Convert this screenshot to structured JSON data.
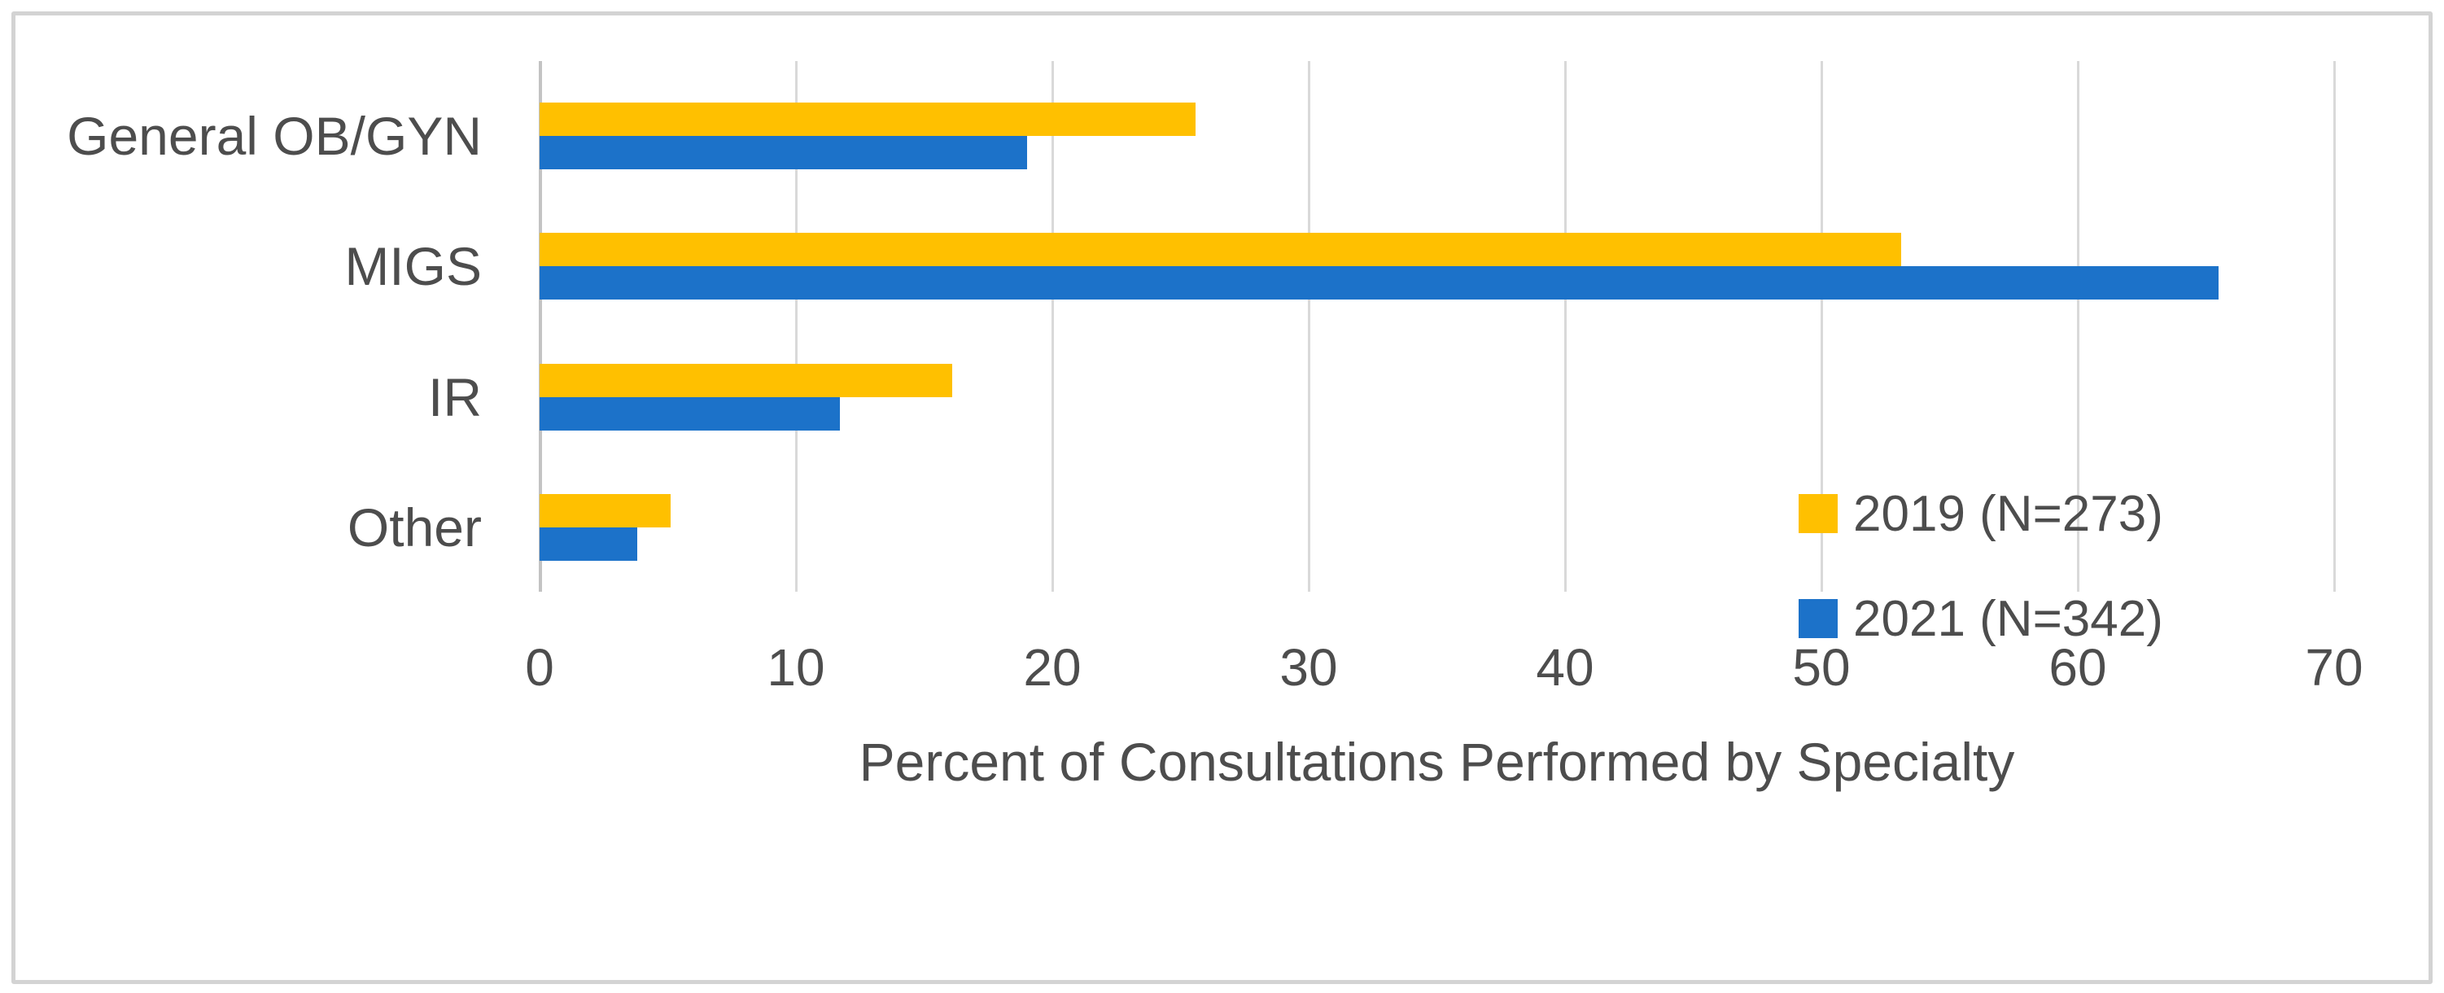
{
  "chart_data": {
    "type": "bar",
    "orientation": "horizontal",
    "title": "",
    "xlabel": "Percent of Consultations Performed by Specialty",
    "ylabel": "",
    "categories": [
      "General OB/GYN",
      "MIGS",
      "IR",
      "Other"
    ],
    "series": [
      {
        "name": "2019 (N=273)",
        "color": "#FFC000",
        "values": [
          25.6,
          53.1,
          16.1,
          5.1
        ]
      },
      {
        "name": "2021 (N=342)",
        "color": "#1C72C9",
        "values": [
          19.0,
          65.5,
          11.7,
          3.8
        ]
      }
    ],
    "xlim": [
      0,
      70
    ],
    "xticks": [
      0,
      10,
      20,
      30,
      40,
      50,
      60,
      70
    ],
    "grid": true,
    "legend_position": "inside-right"
  },
  "colors": {
    "gridline": "#D9D9D9",
    "zero_line": "#C3C3C3",
    "text": "#4D4D4D",
    "frame_border": "#D3D3D3",
    "series_2019": "#FFC000",
    "series_2021": "#1C72C9"
  }
}
